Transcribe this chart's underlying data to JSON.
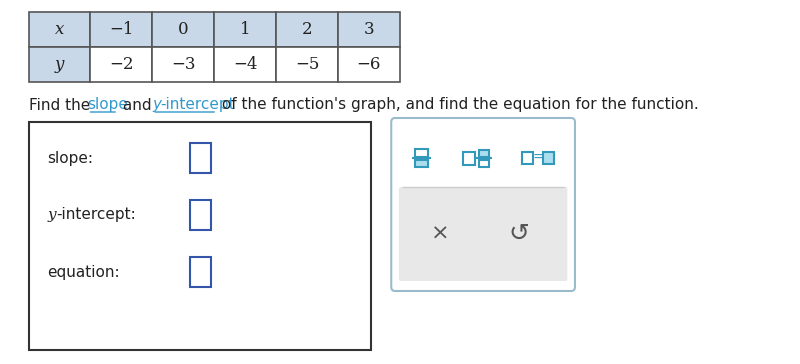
{
  "table_headers": [
    "x",
    "−1",
    "0",
    "1",
    "2",
    "3"
  ],
  "table_row2": [
    "y",
    "−2",
    "−3",
    "−4",
    "−5",
    "−6"
  ],
  "form_labels": [
    "slope:",
    "y-intercept:",
    "equation:"
  ],
  "bg_color": "#ffffff",
  "table_header_bg": "#c8d8e8",
  "table_border_color": "#555555",
  "input_box_color": "#3355aa",
  "text_color": "#222222",
  "link_color": "#3399cc",
  "panel_border_color": "#99bbcc",
  "form_border_color": "#333333",
  "icon_color": "#3399bb",
  "icon_fill": "#aaddee",
  "panel_bottom_bg": "#e8e8e8",
  "sep_color": "#cccccc",
  "btn_color": "#555555"
}
